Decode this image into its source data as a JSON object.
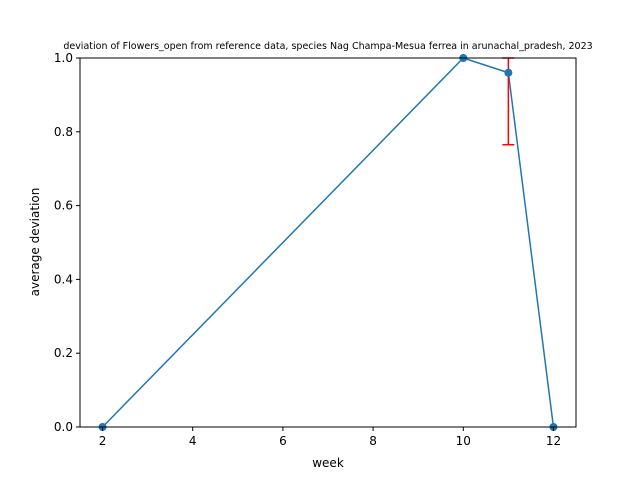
{
  "chart_data": {
    "type": "line",
    "title": "deviation of Flowers_open from reference data, species Nag Champa-Mesua ferrea in arunachal_pradesh, 2023",
    "xlabel": "week",
    "ylabel": "average deviation",
    "xlim": [
      1.5,
      12.5
    ],
    "ylim": [
      0,
      1.0
    ],
    "xticks": [
      2,
      4,
      6,
      8,
      10,
      12
    ],
    "yticks": [
      0.0,
      0.2,
      0.4,
      0.6,
      0.8,
      1.0
    ],
    "xtick_labels": [
      "2",
      "4",
      "6",
      "8",
      "10",
      "12"
    ],
    "ytick_labels": [
      "0.0",
      "0.2",
      "0.4",
      "0.6",
      "0.8",
      "1.0"
    ],
    "grid": false,
    "series": [
      {
        "x": [
          2,
          10,
          11,
          12
        ],
        "y": [
          0.0,
          1.0,
          0.96,
          0.0
        ],
        "color": "#1f77b4",
        "error_bars": [
          {
            "x": 11,
            "low": 0.765,
            "high": 1.0,
            "color": "#ff0000"
          }
        ]
      }
    ]
  }
}
